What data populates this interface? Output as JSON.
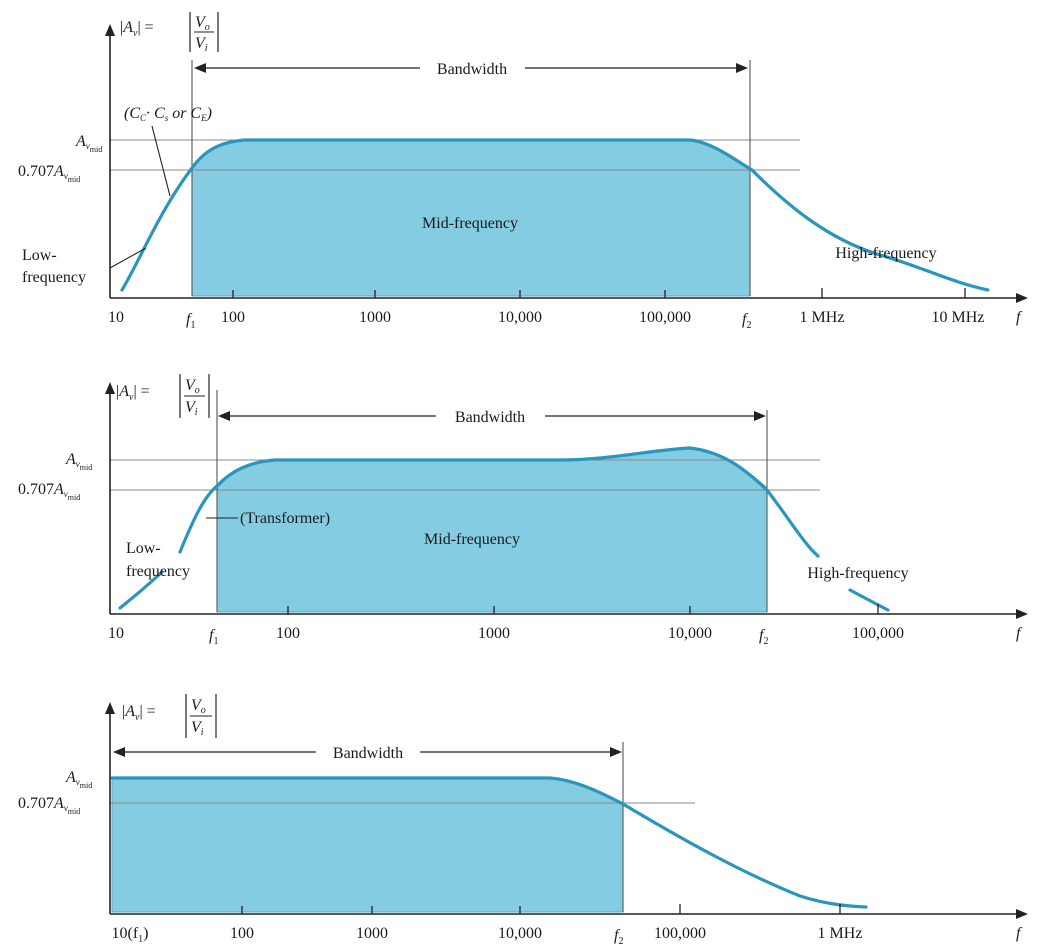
{
  "colors": {
    "band_fill": "#84cce2",
    "curve": "#2a95bd",
    "axis": "#222222"
  },
  "panels": [
    {
      "gain_label": {
        "abs_open": "|",
        "A": "A",
        "sub": "v",
        "abs_close": "| =",
        "Vo": "V",
        "o": "o",
        "Vi": "V",
        "i": "i"
      },
      "yaxis": {
        "amid": "A",
        "amid_sub": "v",
        "amid_subsub": "mid",
        "frac_prefix": "0.707"
      },
      "bandwidth_label": "Bandwidth",
      "region_mid": "Mid-frequency",
      "region_high": "High-frequency",
      "region_low_1": "Low-",
      "region_low_2": "frequency",
      "annotation": {
        "open": "(C",
        "c_sub": "C",
        "sep": "· C",
        "s_sub": "s",
        "or": " or C",
        "e_sub": "E",
        "close": ")"
      },
      "x_ticks": [
        "10",
        "100",
        "1000",
        "10,000",
        "100,000",
        "1 MHz",
        "10 MHz"
      ],
      "f1": {
        "f": "f",
        "sub": "1"
      },
      "f2": {
        "f": "f",
        "sub": "2"
      },
      "f_axis": "f"
    },
    {
      "gain_label": {
        "abs_open": "|",
        "A": "A",
        "sub": "v",
        "abs_close": "| =",
        "Vo": "V",
        "o": "o",
        "Vi": "V",
        "i": "i"
      },
      "yaxis": {
        "amid": "A",
        "amid_sub": "v",
        "amid_subsub": "mid",
        "frac_prefix": "0.707"
      },
      "bandwidth_label": "Bandwidth",
      "region_mid": "Mid-frequency",
      "region_high": "High-frequency",
      "region_low_1": "Low-",
      "region_low_2": "frequency",
      "annotation_text": "(Transformer)",
      "x_ticks": [
        "10",
        "100",
        "1000",
        "10,000",
        "100,000"
      ],
      "f1": {
        "f": "f",
        "sub": "1"
      },
      "f2": {
        "f": "f",
        "sub": "2"
      },
      "f_axis": "f"
    },
    {
      "gain_label": {
        "abs_open": "|",
        "A": "A",
        "sub": "v",
        "abs_close": "| =",
        "Vo": "V",
        "o": "o",
        "Vi": "V",
        "i": "i"
      },
      "yaxis": {
        "amid": "A",
        "amid_sub": "v",
        "amid_subsub": "mid",
        "frac_prefix": "0.707"
      },
      "bandwidth_label": "Bandwidth",
      "x_first": {
        "pre": "10(f",
        "sub": "1",
        "post": ")"
      },
      "x_ticks": [
        "100",
        "1000",
        "10,000",
        "100,000",
        "1 MHz"
      ],
      "f2": {
        "f": "f",
        "sub": "2"
      },
      "f_axis": "f"
    }
  ]
}
